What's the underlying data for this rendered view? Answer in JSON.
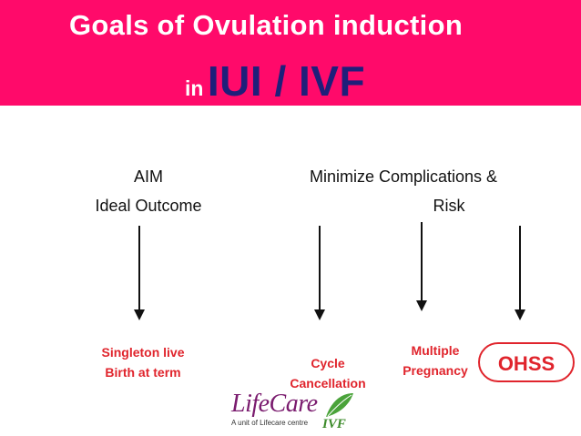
{
  "title": {
    "line1": "Goals of Ovulation induction",
    "line2_prefix": "in",
    "line2_main": "IUI / IVF"
  },
  "left_heading": {
    "line1": "AIM",
    "line2": "Ideal Outcome"
  },
  "right_heading": {
    "line1": "Minimize Complications &",
    "line2": "Risk"
  },
  "outcomes": {
    "singleton_line1": "Singleton live",
    "singleton_line2": "Birth at term",
    "cycle_line1": "Cycle",
    "cycle_line2": "Cancellation",
    "multiple_line1": "Multiple",
    "multiple_line2": "Pregnancy",
    "ohss": "OHSS"
  },
  "logo": {
    "text": "LifeCare",
    "subtitle": "A unit of Lifecare centre",
    "ivf": "IVF"
  },
  "colors": {
    "banner": "#ff0a6a",
    "title_accent": "#1f1f7a",
    "outcome_red": "#e0242c",
    "logo_purple": "#7a1b6e",
    "logo_green": "#3d8b2b"
  }
}
